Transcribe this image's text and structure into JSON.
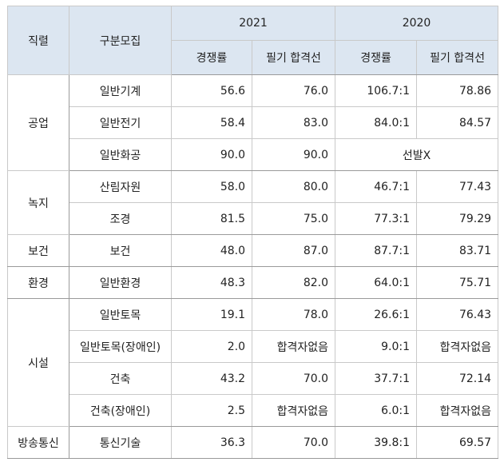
{
  "header": {
    "col_category": "직렬",
    "col_sub": "구분모집",
    "year_2021": "2021",
    "year_2020": "2020",
    "rate_2021": "경쟁률",
    "cutoff_2021": "필기 합격선",
    "rate_2020": "경쟁률",
    "cutoff_2020": "필기 합격선"
  },
  "groups": {
    "g1": "공업",
    "g2": "녹지",
    "g3": "보건",
    "g4": "환경",
    "g5": "시설",
    "g6": "방송통신"
  },
  "rows": [
    {
      "sub": "일반기계",
      "r21": "56.6",
      "c21": "76.0",
      "r20": "106.7:1",
      "c20": "78.86"
    },
    {
      "sub": "일반전기",
      "r21": "58.4",
      "c21": "83.0",
      "r20": "84.0:1",
      "c20": "84.57"
    },
    {
      "sub": "일반화공",
      "r21": "90.0",
      "c21": "90.0",
      "merged20": "선발X"
    },
    {
      "sub": "산림자원",
      "r21": "58.0",
      "c21": "80.0",
      "r20": "46.7:1",
      "c20": "77.43"
    },
    {
      "sub": "조경",
      "r21": "81.5",
      "c21": "75.0",
      "r20": "77.3:1",
      "c20": "79.29"
    },
    {
      "sub": "보건",
      "r21": "48.0",
      "c21": "87.0",
      "r20": "87.7:1",
      "c20": "83.71"
    },
    {
      "sub": "일반환경",
      "r21": "48.3",
      "c21": "82.0",
      "r20": "64.0:1",
      "c20": "75.71"
    },
    {
      "sub": "일반토목",
      "r21": "19.1",
      "c21": "78.0",
      "r20": "26.6:1",
      "c20": "76.43"
    },
    {
      "sub": "일반토목(장애인)",
      "r21": "2.0",
      "c21": "합격자없음",
      "r20": "9.0:1",
      "c20": "합격자없음"
    },
    {
      "sub": "건축",
      "r21": "43.2",
      "c21": "70.0",
      "r20": "37.7:1",
      "c20": "72.14"
    },
    {
      "sub": "건축(장애인)",
      "r21": "2.5",
      "c21": "합격자없음",
      "r20": "6.0:1",
      "c20": "합격자없음"
    },
    {
      "sub": "통신기술",
      "r21": "36.3",
      "c21": "70.0",
      "r20": "39.8:1",
      "c20": "69.57"
    }
  ]
}
